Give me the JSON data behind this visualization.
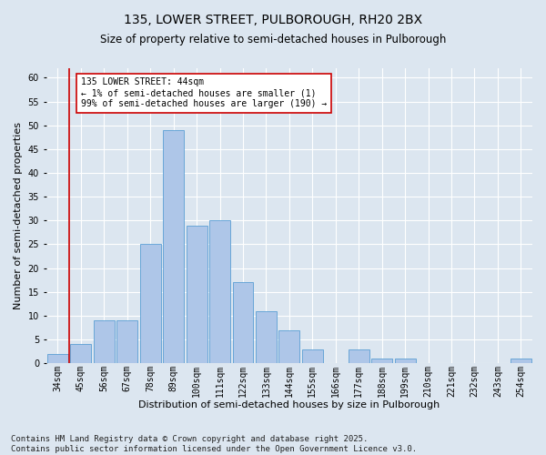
{
  "title": "135, LOWER STREET, PULBOROUGH, RH20 2BX",
  "subtitle": "Size of property relative to semi-detached houses in Pulborough",
  "xlabel": "Distribution of semi-detached houses by size in Pulborough",
  "ylabel": "Number of semi-detached properties",
  "footer_line1": "Contains HM Land Registry data © Crown copyright and database right 2025.",
  "footer_line2": "Contains public sector information licensed under the Open Government Licence v3.0.",
  "annotation_title": "135 LOWER STREET: 44sqm",
  "annotation_line1": "← 1% of semi-detached houses are smaller (1)",
  "annotation_line2": "99% of semi-detached houses are larger (190) →",
  "bar_categories": [
    "34sqm",
    "45sqm",
    "56sqm",
    "67sqm",
    "78sqm",
    "89sqm",
    "100sqm",
    "111sqm",
    "122sqm",
    "133sqm",
    "144sqm",
    "155sqm",
    "166sqm",
    "177sqm",
    "188sqm",
    "199sqm",
    "210sqm",
    "221sqm",
    "232sqm",
    "243sqm",
    "254sqm"
  ],
  "bar_values": [
    2,
    4,
    9,
    9,
    25,
    49,
    29,
    30,
    17,
    11,
    7,
    3,
    0,
    3,
    1,
    1,
    0,
    0,
    0,
    0,
    1
  ],
  "bar_color": "#aec6e8",
  "bar_edge_color": "#5a9fd4",
  "vline_color": "#cc0000",
  "vline_x_index": 0.5,
  "ylim": [
    0,
    62
  ],
  "yticks": [
    0,
    5,
    10,
    15,
    20,
    25,
    30,
    35,
    40,
    45,
    50,
    55,
    60
  ],
  "bg_color": "#dce6f0",
  "plot_bg_color": "#dce6f0",
  "annotation_box_facecolor": "#ffffff",
  "annotation_box_edgecolor": "#cc0000",
  "title_fontsize": 10,
  "subtitle_fontsize": 8.5,
  "tick_fontsize": 7,
  "ylabel_fontsize": 8,
  "xlabel_fontsize": 8,
  "annotation_fontsize": 7,
  "footer_fontsize": 6.5
}
